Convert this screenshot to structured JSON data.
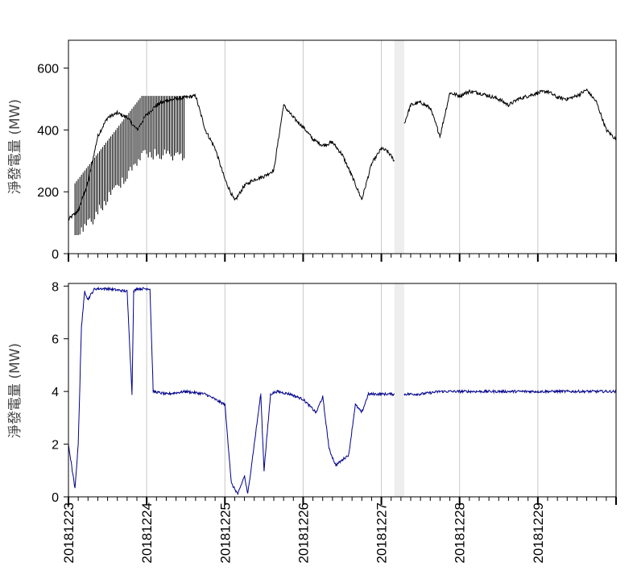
{
  "chart_data": [
    {
      "type": "line",
      "title": "",
      "xlabel": "",
      "ylabel": "淨發電量 (MW)",
      "ylim": [
        0,
        690
      ],
      "yticks": [
        0,
        200,
        400,
        600
      ],
      "x_range": [
        "2018-12-23 00:00",
        "2018-12-29 23:59"
      ],
      "gap": [
        "2018-12-27 04:00",
        "2018-12-27 07:00"
      ],
      "grid": "vertical at each day",
      "series_color": "#000000",
      "series": [
        {
          "x": [
            "12-23 00:00",
            "12-23 03:00",
            "12-23 06:00",
            "12-23 09:00",
            "12-23 12:00",
            "12-23 15:00",
            "12-23 18:00",
            "12-23 21:00",
            "12-24 00:00",
            "12-24 03:00",
            "12-24 06:00",
            "12-24 09:00",
            "12-24 12:00",
            "12-24 15:00",
            "12-24 18:00",
            "12-24 21:00",
            "12-25 00:00",
            "12-25 03:00",
            "12-25 06:00",
            "12-25 09:00",
            "12-25 12:00",
            "12-25 15:00",
            "12-25 18:00",
            "12-25 21:00",
            "12-26 00:00",
            "12-26 03:00",
            "12-26 06:00",
            "12-26 09:00",
            "12-26 12:00",
            "12-26 15:00",
            "12-26 18:00",
            "12-26 21:00",
            "12-27 00:00",
            "12-27 02:00",
            "12-27 04:00",
            "12-27 07:00",
            "12-27 09:00",
            "12-27 12:00",
            "12-27 15:00",
            "12-27 18:00",
            "12-27 21:00",
            "12-28 00:00",
            "12-28 03:00",
            "12-28 06:00",
            "12-28 09:00",
            "12-28 12:00",
            "12-28 15:00",
            "12-28 18:00",
            "12-28 21:00",
            "12-29 00:00",
            "12-29 03:00",
            "12-29 06:00",
            "12-29 09:00",
            "12-29 12:00",
            "12-29 15:00",
            "12-29 18:00",
            "12-29 21:00",
            "12-29 23:59"
          ],
          "values": [
            110,
            140,
            230,
            380,
            440,
            455,
            440,
            400,
            450,
            480,
            495,
            500,
            505,
            510,
            400,
            340,
            240,
            170,
            220,
            240,
            250,
            270,
            480,
            440,
            410,
            370,
            350,
            360,
            320,
            250,
            175,
            290,
            340,
            330,
            300,
            420,
            480,
            490,
            470,
            380,
            520,
            510,
            525,
            520,
            510,
            500,
            480,
            500,
            510,
            520,
            525,
            505,
            500,
            510,
            530,
            490,
            400,
            370
          ]
        }
      ]
    },
    {
      "type": "line",
      "title": "",
      "xlabel": "",
      "ylabel": "淨發電量 (MW)",
      "ylim": [
        0,
        8.1
      ],
      "yticks": [
        0,
        2,
        4,
        6,
        8
      ],
      "x_range": [
        "2018-12-23 00:00",
        "2018-12-29 23:59"
      ],
      "gap": [
        "2018-12-27 04:00",
        "2018-12-27 07:00"
      ],
      "grid": "vertical at each day",
      "series_color": "#00008b",
      "series": [
        {
          "x": [
            "12-23 00:00",
            "12-23 02:00",
            "12-23 03:00",
            "12-23 04:00",
            "12-23 05:00",
            "12-23 06:00",
            "12-23 08:00",
            "12-23 12:00",
            "12-23 18:00",
            "12-23 19:30",
            "12-23 20:00",
            "12-23 21:00",
            "12-24 00:00",
            "12-24 01:00",
            "12-24 02:00",
            "12-24 06:00",
            "12-24 12:00",
            "12-24 18:00",
            "12-25 00:00",
            "12-25 02:00",
            "12-25 04:00",
            "12-25 06:00",
            "12-25 07:00",
            "12-25 09:00",
            "12-25 11:00",
            "12-25 12:00",
            "12-25 14:00",
            "12-25 16:00",
            "12-25 20:00",
            "12-26 00:00",
            "12-26 04:00",
            "12-26 06:00",
            "12-26 08:00",
            "12-26 10:00",
            "12-26 12:00",
            "12-26 14:00",
            "12-26 16:00",
            "12-26 18:00",
            "12-26 20:00",
            "12-27 00:00",
            "12-27 04:00",
            "12-27 07:00",
            "12-27 12:00",
            "12-27 18:00",
            "12-28 00:00",
            "12-29 00:00",
            "12-29 23:59"
          ],
          "values": [
            2.0,
            0.3,
            2.0,
            6.5,
            7.8,
            7.5,
            7.9,
            7.9,
            7.8,
            3.9,
            7.8,
            7.9,
            7.9,
            7.9,
            4.0,
            3.9,
            4.0,
            3.9,
            3.5,
            0.5,
            0.1,
            0.8,
            0.1,
            2.0,
            3.9,
            1.0,
            3.9,
            4.0,
            3.9,
            3.7,
            3.2,
            3.8,
            1.8,
            1.2,
            1.4,
            1.6,
            3.5,
            3.2,
            3.9,
            3.9,
            3.9,
            3.9,
            3.9,
            4.0,
            4.0,
            4.0,
            4.0
          ]
        }
      ]
    }
  ],
  "x_axis": {
    "tick_labels": [
      "20181223",
      "20181224",
      "20181225",
      "20181226",
      "20181227",
      "20181228",
      "20181229"
    ]
  }
}
